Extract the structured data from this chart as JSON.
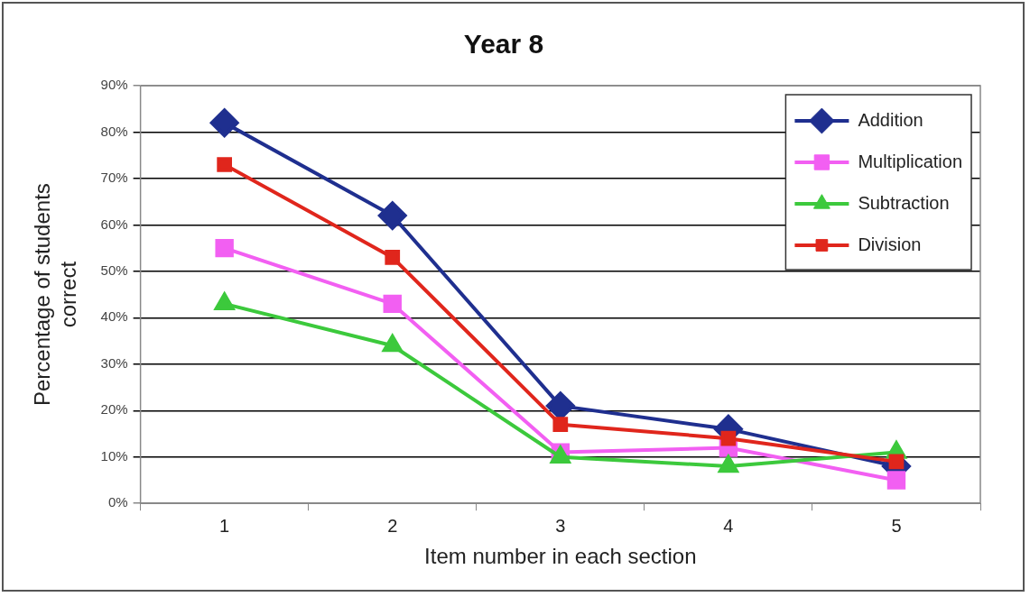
{
  "chart_data": {
    "type": "line",
    "title": "Year 8",
    "xlabel": "Item number in each section",
    "ylabel": "Percentage of students correct",
    "categories": [
      "1",
      "2",
      "3",
      "4",
      "5"
    ],
    "series": [
      {
        "name": "Addition",
        "color": "#1f2f8f",
        "marker": "diamond",
        "values": [
          82,
          62,
          21,
          16,
          8
        ]
      },
      {
        "name": "Multiplication",
        "color": "#f25ff2",
        "marker": "square",
        "values": [
          55,
          43,
          11,
          12,
          5
        ]
      },
      {
        "name": "Subtraction",
        "color": "#3cc93c",
        "marker": "triangle",
        "values": [
          43,
          34,
          10,
          8,
          11
        ]
      },
      {
        "name": "Division",
        "color": "#e0261c",
        "marker": "square",
        "values": [
          73,
          53,
          17,
          14,
          9
        ]
      }
    ],
    "ylim": [
      0,
      90
    ],
    "yticks": [
      {
        "value": 0,
        "label": "0%"
      },
      {
        "value": 10,
        "label": "10%"
      },
      {
        "value": 20,
        "label": "20%"
      },
      {
        "value": 30,
        "label": "30%"
      },
      {
        "value": 40,
        "label": "40%"
      },
      {
        "value": 50,
        "label": "50%"
      },
      {
        "value": 60,
        "label": "60%"
      },
      {
        "value": 70,
        "label": "70%"
      },
      {
        "value": 80,
        "label": "80%"
      },
      {
        "value": 90,
        "label": "90%"
      }
    ],
    "grid": "y",
    "legend": "top right"
  }
}
